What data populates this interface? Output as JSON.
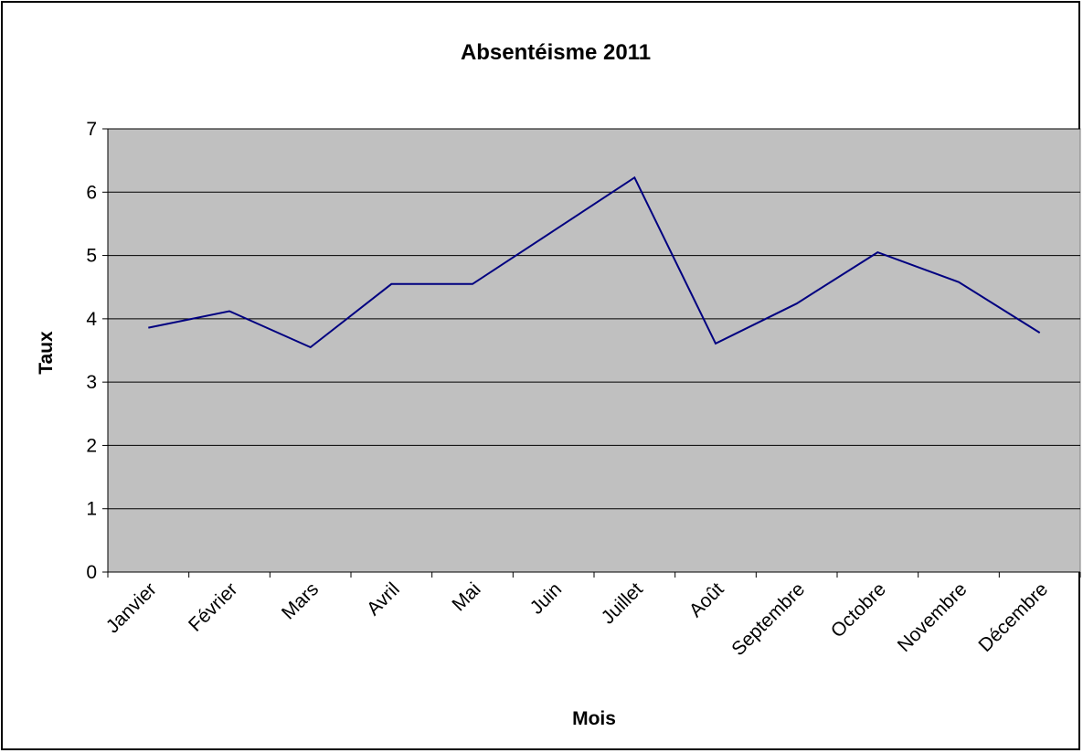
{
  "chart_data": {
    "type": "line",
    "title": "Absentéisme 2011",
    "xlabel": "Mois",
    "ylabel": "Taux",
    "categories": [
      "Janvier",
      "Février",
      "Mars",
      "Avril",
      "Mai",
      "Juin",
      "Juillet",
      "Août",
      "Septembre",
      "Octobre",
      "Novembre",
      "Décembre"
    ],
    "series": [
      {
        "values": [
          3.86,
          4.12,
          3.55,
          4.55,
          4.55,
          5.39,
          6.23,
          3.61,
          4.24,
          5.05,
          4.58,
          3.78
        ],
        "color": "#000080"
      }
    ],
    "ylim": [
      0,
      7
    ],
    "yticks": [
      0,
      1,
      2,
      3,
      4,
      5,
      6,
      7
    ],
    "grid": true,
    "legend": "none",
    "plot_background": "#C0C0C0"
  }
}
